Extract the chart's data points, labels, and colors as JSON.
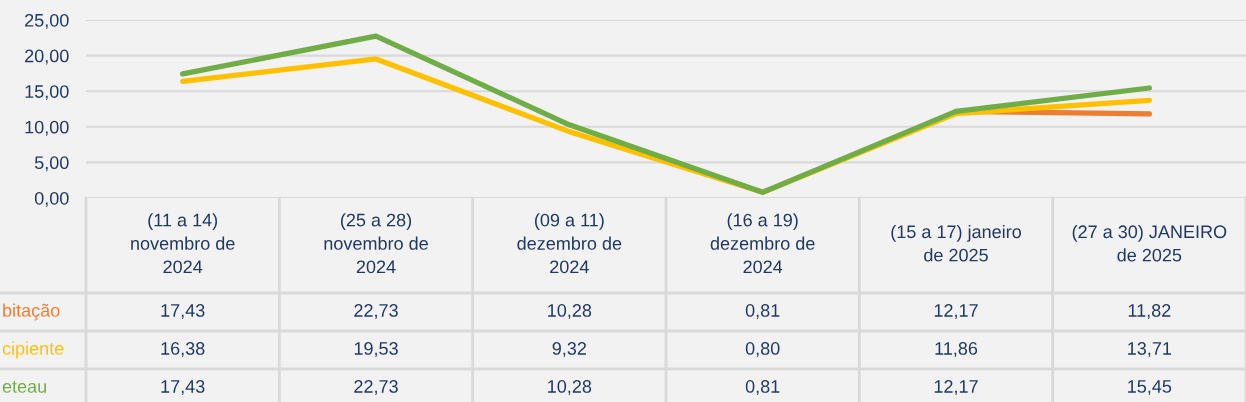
{
  "chart_data": {
    "type": "line",
    "categories": [
      "(11 a 14)\nnovembro de\n2024",
      "(25 a 28)\nnovembro de\n2024",
      "(09 a 11)\ndezembro de\n2024",
      "(16 a 19)\ndezembro de\n2024",
      "(15 a 17) janeiro\nde 2025",
      "(27 a 30) JANEIRO\nde 2025"
    ],
    "series": [
      {
        "name": "bitação",
        "color": "#ed7d31",
        "values": [
          null,
          null,
          null,
          null,
          12.17,
          11.82
        ],
        "value_labels": [
          "17,43",
          "22,73",
          "10,28",
          "0,81",
          "12,17",
          "11,82"
        ]
      },
      {
        "name": "cipiente",
        "color": "#ffc000",
        "values": [
          16.38,
          19.53,
          9.32,
          0.8,
          11.86,
          13.71
        ],
        "value_labels": [
          "16,38",
          "19,53",
          "9,32",
          "0,80",
          "11,86",
          "13,71"
        ]
      },
      {
        "name": "eteau",
        "color": "#70ad47",
        "values": [
          17.43,
          22.73,
          10.28,
          0.81,
          12.17,
          15.45
        ],
        "value_labels": [
          "17,43",
          "22,73",
          "10,28",
          "0,81",
          "12,17",
          "15,45"
        ]
      }
    ],
    "ylim": [
      0,
      25
    ],
    "yticks": [
      {
        "value": 0,
        "label": "0,00"
      },
      {
        "value": 5,
        "label": "5,00"
      },
      {
        "value": 10,
        "label": "10,00"
      },
      {
        "value": 15,
        "label": "15,00"
      },
      {
        "value": 20,
        "label": "20,00"
      },
      {
        "value": 25,
        "label": "25,00"
      }
    ],
    "grid": "y",
    "marker": "none",
    "line_style": "solid"
  }
}
